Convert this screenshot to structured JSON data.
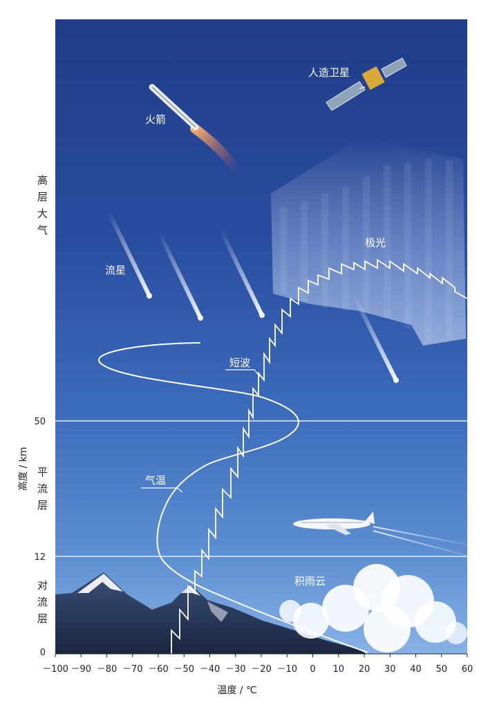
{
  "chart_data": {
    "type": "line",
    "xlabel": "温度 / ℃",
    "ylabel": "高度 / km",
    "xlim": [
      -100,
      60
    ],
    "x_ticks": [
      "－100",
      "－90",
      "－80",
      "－70",
      "－60",
      "－50",
      "－40",
      "－30",
      "－20",
      "－10",
      "0",
      "10",
      "20",
      "30",
      "40",
      "50",
      "60"
    ],
    "y_ticks": [
      "0",
      "12",
      "50"
    ],
    "grid": false,
    "boundaries_km": [
      12,
      50
    ],
    "layers": [
      {
        "label": "对流层",
        "chars": [
          "对",
          "流",
          "层"
        ]
      },
      {
        "label": "平流层",
        "chars": [
          "平",
          "流",
          "层"
        ]
      },
      {
        "label": "高层大气",
        "chars": [
          "高",
          "层",
          "大",
          "气"
        ]
      }
    ],
    "series": [
      {
        "name": "气温",
        "style": "smooth"
      },
      {
        "name": "短波",
        "style": "zigzag"
      }
    ],
    "image_labels": [
      "人造卫星",
      "火箭",
      "流星",
      "极光",
      "积雨云"
    ]
  },
  "colors": {
    "sky_top": "#1f3b85",
    "sky_mid": "#3a64b4",
    "sky_low": "#6d9bd9",
    "curve": "#ffffff",
    "boundary_line": "#e6eefc",
    "axis": "#222222"
  }
}
